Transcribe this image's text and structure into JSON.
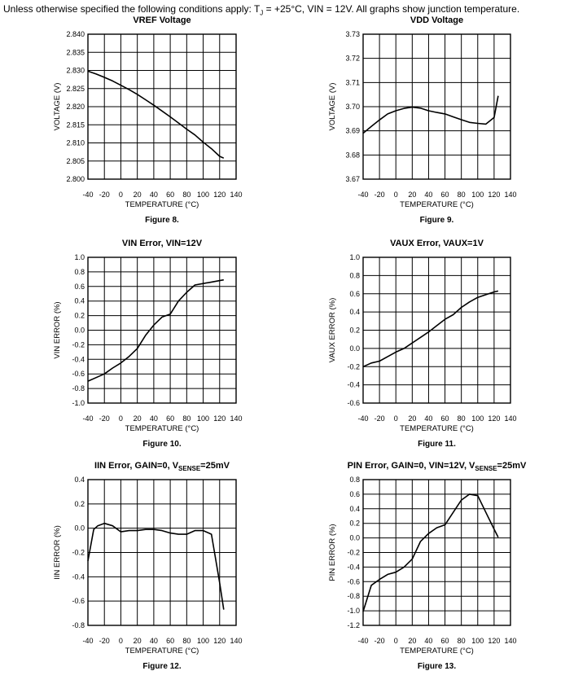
{
  "header": {
    "text_before": "Unless otherwise specified the following conditions apply: T",
    "subscript": "J",
    "text_after": " = +25°C, VIN = 12V. All graphs show junction temperature."
  },
  "chart_data": [
    {
      "type": "line",
      "title": "VREF Voltage",
      "caption": "Figure 8.",
      "xlabel": "TEMPERATURE (°C)",
      "ylabel": "VOLTAGE (V)",
      "xlim": [
        -40,
        140
      ],
      "ylim": [
        2.8,
        2.84
      ],
      "x_ticks": [
        -40,
        -20,
        0,
        20,
        40,
        60,
        80,
        100,
        120,
        140
      ],
      "y_ticks": [
        2.8,
        2.805,
        2.81,
        2.815,
        2.82,
        2.825,
        2.83,
        2.835,
        2.84
      ],
      "y_tick_labels": [
        "2.800",
        "2.805",
        "2.810",
        "2.815",
        "2.820",
        "2.825",
        "2.830",
        "2.835",
        "2.840"
      ],
      "grid": true,
      "series": [
        {
          "x": [
            -40,
            -30,
            -20,
            -10,
            0,
            10,
            20,
            30,
            40,
            50,
            60,
            70,
            80,
            90,
            100,
            110,
            120,
            125
          ],
          "y": [
            2.8298,
            2.829,
            2.8281,
            2.8271,
            2.8259,
            2.8247,
            2.8234,
            2.8219,
            2.8204,
            2.8188,
            2.8172,
            2.8155,
            2.8138,
            2.8122,
            2.8102,
            2.8084,
            2.8063,
            2.8058
          ]
        }
      ]
    },
    {
      "type": "line",
      "title": "VDD Voltage",
      "caption": "Figure 9.",
      "xlabel": "TEMPERATURE (°C)",
      "ylabel": "VOLTAGE (V)",
      "xlim": [
        -40,
        140
      ],
      "ylim": [
        3.67,
        3.73
      ],
      "x_ticks": [
        -40,
        -20,
        0,
        20,
        40,
        60,
        80,
        100,
        120,
        140
      ],
      "y_ticks": [
        3.67,
        3.68,
        3.69,
        3.7,
        3.71,
        3.72,
        3.73
      ],
      "y_tick_labels": [
        "3.67",
        "3.68",
        "3.69",
        "3.70",
        "3.71",
        "3.72",
        "3.73"
      ],
      "grid": true,
      "series": [
        {
          "x": [
            -40,
            -30,
            -20,
            -10,
            0,
            10,
            20,
            30,
            40,
            50,
            60,
            70,
            80,
            90,
            100,
            110,
            120,
            125
          ],
          "y": [
            3.689,
            3.6918,
            3.6945,
            3.697,
            3.6983,
            3.6993,
            3.6998,
            3.6994,
            3.6983,
            3.6976,
            3.697,
            3.6958,
            3.6946,
            3.6935,
            3.6931,
            3.6928,
            3.6955,
            3.7045
          ]
        }
      ]
    },
    {
      "type": "line",
      "title": "VIN Error, VIN=12V",
      "caption": "Figure 10.",
      "xlabel": "TEMPERATURE (°C)",
      "ylabel": "VIN ERROR (%)",
      "xlim": [
        -40,
        140
      ],
      "ylim": [
        -1.0,
        1.0
      ],
      "x_ticks": [
        -40,
        -20,
        0,
        20,
        40,
        60,
        80,
        100,
        120,
        140
      ],
      "y_ticks": [
        -1.0,
        -0.8,
        -0.6,
        -0.4,
        -0.2,
        0.0,
        0.2,
        0.4,
        0.6,
        0.8,
        1.0
      ],
      "y_tick_labels": [
        "-1.0",
        "-0.8",
        "-0.6",
        "-0.4",
        "-0.2",
        "0.0",
        "0.2",
        "0.4",
        "0.6",
        "0.8",
        "1.0"
      ],
      "grid": true,
      "series": [
        {
          "x": [
            -40,
            -30,
            -20,
            -10,
            0,
            10,
            20,
            30,
            40,
            50,
            60,
            70,
            80,
            90,
            100,
            110,
            120,
            125
          ],
          "y": [
            -0.7,
            -0.65,
            -0.6,
            -0.52,
            -0.45,
            -0.36,
            -0.25,
            -0.07,
            0.07,
            0.18,
            0.22,
            0.4,
            0.52,
            0.62,
            0.64,
            0.66,
            0.68,
            0.69
          ]
        }
      ]
    },
    {
      "type": "line",
      "title": "VAUX Error, VAUX=1V",
      "caption": "Figure 11.",
      "xlabel": "TEMPERATURE (°C)",
      "ylabel": "VAUX ERROR (%)",
      "xlim": [
        -40,
        140
      ],
      "ylim": [
        -0.6,
        1.0
      ],
      "x_ticks": [
        -40,
        -20,
        0,
        20,
        40,
        60,
        80,
        100,
        120,
        140
      ],
      "y_ticks": [
        -0.6,
        -0.4,
        -0.2,
        0.0,
        0.2,
        0.4,
        0.6,
        0.8,
        1.0
      ],
      "y_tick_labels": [
        "-0.6",
        "-0.4",
        "-0.2",
        "0.0",
        "0.2",
        "0.4",
        "0.6",
        "0.8",
        "1.0"
      ],
      "grid": true,
      "series": [
        {
          "x": [
            -40,
            -30,
            -20,
            -10,
            0,
            10,
            20,
            30,
            40,
            50,
            60,
            70,
            80,
            90,
            100,
            110,
            120,
            125
          ],
          "y": [
            -0.2,
            -0.16,
            -0.14,
            -0.09,
            -0.04,
            0.0,
            0.06,
            0.12,
            0.18,
            0.25,
            0.32,
            0.37,
            0.45,
            0.51,
            0.56,
            0.59,
            0.62,
            0.63
          ]
        }
      ]
    },
    {
      "type": "line",
      "title_text": "IIN Error, GAIN=0, V",
      "title_sub": "SENSE",
      "title_tail": "=25mV",
      "caption": "Figure 12.",
      "xlabel": "TEMPERATURE (°C)",
      "ylabel": "IIN ERROR (%)",
      "xlim": [
        -40,
        140
      ],
      "ylim": [
        -0.8,
        0.4
      ],
      "x_ticks": [
        -40,
        -20,
        0,
        20,
        40,
        60,
        80,
        100,
        120,
        140
      ],
      "y_ticks": [
        -0.8,
        -0.6,
        -0.4,
        -0.2,
        0.0,
        0.2,
        0.4
      ],
      "y_tick_labels": [
        "-0.8",
        "-0.6",
        "-0.4",
        "-0.2",
        "0.0",
        "0.2",
        "0.4"
      ],
      "grid": true,
      "series": [
        {
          "x": [
            -40,
            -33,
            -28,
            -20,
            -10,
            0,
            10,
            20,
            30,
            40,
            50,
            60,
            70,
            80,
            90,
            100,
            110,
            120,
            125
          ],
          "y": [
            -0.27,
            -0.01,
            0.02,
            0.04,
            0.02,
            -0.03,
            -0.02,
            -0.02,
            -0.01,
            -0.01,
            -0.02,
            -0.04,
            -0.05,
            -0.05,
            -0.02,
            -0.02,
            -0.05,
            -0.45,
            -0.67
          ]
        }
      ]
    },
    {
      "type": "line",
      "title_text": "PIN Error, GAIN=0, VIN=12V, V",
      "title_sub": "SENSE",
      "title_tail": "=25mV",
      "caption": "Figure 13.",
      "xlabel": "TEMPERATURE (°C)",
      "ylabel": "PIN ERROR (%)",
      "xlim": [
        -40,
        140
      ],
      "ylim": [
        -1.2,
        0.8
      ],
      "x_ticks": [
        -40,
        -20,
        0,
        20,
        40,
        60,
        80,
        100,
        120,
        140
      ],
      "y_ticks": [
        -1.2,
        -1.0,
        -0.8,
        -0.6,
        -0.4,
        -0.2,
        0.0,
        0.2,
        0.4,
        0.6,
        0.8
      ],
      "y_tick_labels": [
        "-1.2",
        "-1.0",
        "-0.8",
        "-0.6",
        "-0.4",
        "-0.2",
        "0.0",
        "0.2",
        "0.4",
        "0.6",
        "0.8"
      ],
      "grid": true,
      "series": [
        {
          "x": [
            -40,
            -30,
            -20,
            -10,
            0,
            10,
            20,
            30,
            40,
            50,
            60,
            70,
            80,
            90,
            100,
            110,
            120,
            125
          ],
          "y": [
            -1.01,
            -0.65,
            -0.57,
            -0.5,
            -0.47,
            -0.4,
            -0.29,
            -0.05,
            0.06,
            0.14,
            0.18,
            0.35,
            0.52,
            0.6,
            0.58,
            0.35,
            0.12,
            0.01
          ]
        }
      ]
    }
  ]
}
